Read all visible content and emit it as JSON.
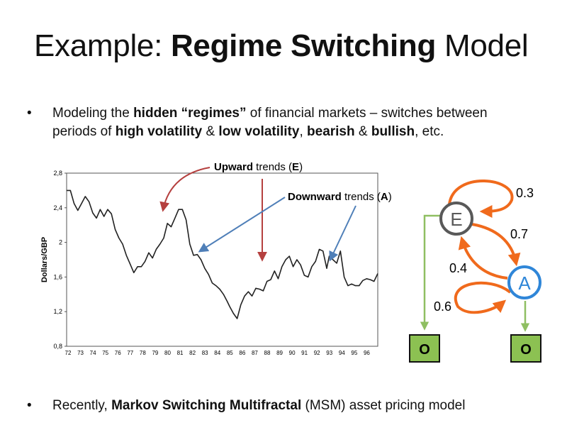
{
  "slide": {
    "title_prefix": "Example: ",
    "title_bold": "Regime Switching",
    "title_suffix": " Model"
  },
  "bullets": [
    {
      "marker": "•",
      "line1": [
        {
          "t": "Modeling the ",
          "b": false
        },
        {
          "t": "hidden “regimes”",
          "b": true
        },
        {
          "t": " of financial markets – switches between",
          "b": false
        }
      ],
      "line2": [
        {
          "t": "periods of ",
          "b": false
        },
        {
          "t": "high volatility",
          "b": true
        },
        {
          "t": " & ",
          "b": false
        },
        {
          "t": "low volatility",
          "b": true
        },
        {
          "t": ", ",
          "b": false
        },
        {
          "t": "bearish",
          "b": true
        },
        {
          "t": " & ",
          "b": false
        },
        {
          "t": "bullish",
          "b": true
        },
        {
          "t": ", etc.",
          "b": false
        }
      ]
    },
    {
      "marker": "•",
      "line1": [
        {
          "t": "Recently, ",
          "b": false
        },
        {
          "t": "Markov Switching Multifractal",
          "b": true
        },
        {
          "t": " (MSM) asset pricing model",
          "b": false
        }
      ]
    }
  ],
  "annotations": {
    "upward": {
      "bold": "Upward",
      "rest": " trends (",
      "letter": "E",
      "close": ")"
    },
    "downward": {
      "bold": "Downward",
      "rest": " trends (",
      "letter": "A",
      "close": ")"
    },
    "up_color": "#b5403f",
    "down_color": "#4f7fb8"
  },
  "chart_data": {
    "type": "line",
    "ylabel": "Dollars/GBP",
    "ylim": [
      0.8,
      2.8
    ],
    "yticks": [
      "0,8",
      "1,2",
      "1,6",
      "2",
      "2,4",
      "2,8"
    ],
    "ytick_values": [
      0.8,
      1.2,
      1.6,
      2.0,
      2.4,
      2.8
    ],
    "xlim": [
      72,
      97
    ],
    "xticks": [
      "72",
      "73",
      "74",
      "75",
      "76",
      "77",
      "78",
      "79",
      "80",
      "81",
      "82",
      "83",
      "84",
      "85",
      "86",
      "87",
      "88",
      "89",
      "90",
      "91",
      "92",
      "93",
      "94",
      "95",
      "96"
    ],
    "series": [
      {
        "x": [
          72.0,
          72.3,
          72.6,
          72.9,
          73.2,
          73.5,
          73.8,
          74.1,
          74.4,
          74.7,
          75.0,
          75.3,
          75.6,
          75.9,
          76.2,
          76.5,
          76.8,
          77.1,
          77.4,
          77.7,
          78.0,
          78.3,
          78.6,
          78.9,
          79.2,
          79.5,
          79.8,
          80.1,
          80.4,
          80.7,
          81.0,
          81.3,
          81.6,
          81.9,
          82.2,
          82.5,
          82.8,
          83.1,
          83.4,
          83.7,
          84.0,
          84.3,
          84.6,
          84.9,
          85.1,
          85.4,
          85.7,
          86.0,
          86.3,
          86.6,
          86.9,
          87.2,
          87.5,
          87.8,
          88.1,
          88.4,
          88.7,
          89.0,
          89.3,
          89.6,
          89.9,
          90.2,
          90.5,
          90.8,
          91.1,
          91.4,
          91.7,
          92.0,
          92.3,
          92.6,
          92.9,
          93.1,
          93.4,
          93.7,
          94.0,
          94.3,
          94.6,
          94.9,
          95.2,
          95.5,
          95.8,
          96.1,
          96.4,
          96.7,
          97.0
        ],
        "values": [
          2.6,
          2.6,
          2.45,
          2.37,
          2.45,
          2.53,
          2.47,
          2.34,
          2.28,
          2.38,
          2.3,
          2.38,
          2.33,
          2.15,
          2.05,
          1.98,
          1.85,
          1.75,
          1.65,
          1.72,
          1.72,
          1.78,
          1.88,
          1.82,
          1.92,
          1.98,
          2.05,
          2.22,
          2.18,
          2.28,
          2.38,
          2.38,
          2.26,
          1.98,
          1.85,
          1.86,
          1.8,
          1.7,
          1.63,
          1.53,
          1.5,
          1.46,
          1.4,
          1.32,
          1.26,
          1.18,
          1.12,
          1.28,
          1.38,
          1.43,
          1.38,
          1.47,
          1.46,
          1.44,
          1.55,
          1.57,
          1.67,
          1.58,
          1.72,
          1.8,
          1.84,
          1.72,
          1.8,
          1.74,
          1.62,
          1.6,
          1.72,
          1.78,
          1.92,
          1.9,
          1.7,
          1.84,
          1.8,
          1.76,
          1.9,
          1.6,
          1.5,
          1.52,
          1.5,
          1.5,
          1.56,
          1.58,
          1.57,
          1.55,
          1.64
        ]
      }
    ]
  },
  "hmm": {
    "state_e": "E",
    "state_a": "A",
    "obs_left": "O",
    "obs_right": "O",
    "p_ee": "0.3",
    "p_ea": "0.7",
    "p_ae": "0.4",
    "p_aa": "0.6",
    "e_color": "#595959",
    "a_color": "#2f86d8",
    "arrow_color": "#f06a1c",
    "emit_color": "#8fbf62",
    "obs_fill": "#8cc152"
  }
}
